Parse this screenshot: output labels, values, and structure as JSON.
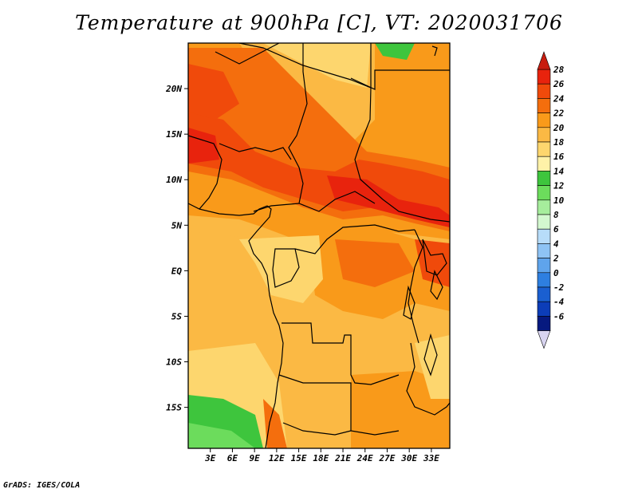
{
  "title": "Temperature at 900hPa [C], VT: 2020031706",
  "credit": "GrADS: IGES/COLA",
  "map": {
    "lon_range": [
      0,
      35.5
    ],
    "lat_range": [
      -19.5,
      25
    ],
    "lon_ticks": [
      {
        "value": 3,
        "label": "3E"
      },
      {
        "value": 6,
        "label": "6E"
      },
      {
        "value": 9,
        "label": "9E"
      },
      {
        "value": 12,
        "label": "12E"
      },
      {
        "value": 15,
        "label": "15E"
      },
      {
        "value": 18,
        "label": "18E"
      },
      {
        "value": 21,
        "label": "21E"
      },
      {
        "value": 24,
        "label": "24E"
      },
      {
        "value": 27,
        "label": "27E"
      },
      {
        "value": 30,
        "label": "30E"
      },
      {
        "value": 33,
        "label": "33E"
      }
    ],
    "lat_ticks": [
      {
        "value": 20,
        "label": "20N"
      },
      {
        "value": 15,
        "label": "15N"
      },
      {
        "value": 10,
        "label": "10N"
      },
      {
        "value": 5,
        "label": "5N"
      },
      {
        "value": 0,
        "label": "EQ"
      },
      {
        "value": -5,
        "label": "5S"
      },
      {
        "value": -10,
        "label": "10S"
      },
      {
        "value": -15,
        "label": "15S"
      }
    ]
  },
  "colorbar": {
    "labels": [
      "28",
      "26",
      "24",
      "22",
      "20",
      "18",
      "16",
      "14",
      "12",
      "10",
      "8",
      "6",
      "4",
      "2",
      "0",
      "-2",
      "-4",
      "-6"
    ],
    "colors": [
      "#e8230d",
      "#f04a0b",
      "#f46e0d",
      "#f99a1a",
      "#fbb944",
      "#fdd66e",
      "#fff2a8",
      "#3ec53d",
      "#6cdc5c",
      "#a6ed9c",
      "#d3f8cf",
      "#b7dcf9",
      "#8ec3f4",
      "#5fa4ec",
      "#2e7fe0",
      "#1a5fd0",
      "#0c3db8",
      "#06197f"
    ],
    "over_color": "#c81d10",
    "under_color": "#d8d4f0"
  }
}
